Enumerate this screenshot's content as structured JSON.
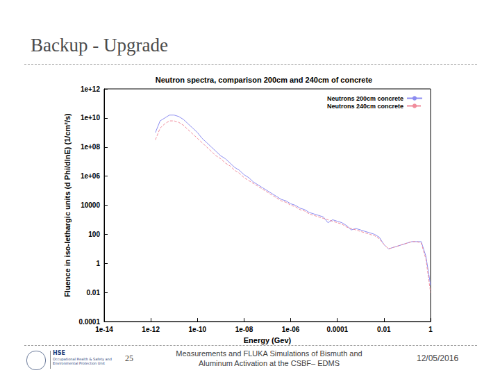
{
  "slide": {
    "title": "Backup - Upgrade",
    "page": "25",
    "footer": "Measurements and FLUKA Simulations of Bismuth and Aluminum Activation at the CSBF– EDMS",
    "date": "12/05/2016",
    "logo_text": "HSE",
    "logo_caption": "Occupational Health & Safety and Environmental Protection Unit"
  },
  "chart_data": {
    "type": "line",
    "title": "Neutron spectra, comparison 200cm and 240cm of concrete",
    "x_label": "Energy (Gev)",
    "y_label": "Fluence in iso-lethargic units (d Phi/dlnE) (1/cm²/s)",
    "log": true,
    "grid": false,
    "legend": "upper right",
    "xlim": [
      1e-14,
      1
    ],
    "ylim": [
      0.0001,
      1000000000000.0
    ],
    "xticks": [
      {
        "value": 1e-14,
        "label": "1e-14"
      },
      {
        "value": 1e-12,
        "label": "1e-12"
      },
      {
        "value": 1e-10,
        "label": "1e-10"
      },
      {
        "value": 1e-08,
        "label": "1e-08"
      },
      {
        "value": 1e-06,
        "label": "1e-06"
      },
      0.0001,
      0.01,
      1
    ],
    "yticks": [
      0.0001,
      0.01,
      1,
      100,
      10000,
      {
        "value": 1000000.0,
        "label": "1e+06"
      },
      {
        "value": 100000000.0,
        "label": "1e+08"
      },
      {
        "value": 10000000000.0,
        "label": "1e+10"
      },
      {
        "value": 1000000000000.0,
        "label": "1e+12"
      }
    ],
    "x": [
      1.58e-12,
      2.51e-12,
      3.98e-12,
      6.31e-12,
      1e-11,
      1.58e-11,
      2.51e-11,
      3.98e-11,
      6.31e-11,
      1e-10,
      1.58e-10,
      2.51e-10,
      3.98e-10,
      6.31e-10,
      1e-09,
      1.58e-09,
      2.51e-09,
      3.98e-09,
      6.31e-09,
      1e-08,
      1.58e-08,
      2.51e-08,
      3.98e-08,
      6.31e-08,
      1e-07,
      1.58e-07,
      2.51e-07,
      3.98e-07,
      6.31e-07,
      1e-06,
      1.58e-06,
      2.51e-06,
      3.98e-06,
      6.31e-06,
      1e-05,
      1.58e-05,
      2.51e-05,
      3.98e-05,
      6.31e-05,
      0.0001,
      0.000158,
      0.000251,
      0.000398,
      0.000631,
      0.001,
      0.00158,
      0.00251,
      0.00398,
      0.00631,
      0.01,
      0.0158,
      0.0251,
      0.0398,
      0.0631,
      0.1,
      0.158,
      0.251,
      0.398,
      0.631,
      1
    ],
    "series": [
      {
        "name": "Neutrons 200cm concrete",
        "color": "#8c8cf0",
        "line_style": "solid",
        "values": [
          1000000000.0,
          6310000000.0,
          10000000000.0,
          15800000000.0,
          15800000000.0,
          12600000000.0,
          7940000000.0,
          3980000000.0,
          2000000000.0,
          1000000000.0,
          398000000.0,
          200000000.0,
          100000000.0,
          50100000.0,
          25100000.0,
          15800000.0,
          7940000.0,
          3980000.0,
          2510000.0,
          1260000.0,
          794000.0,
          398000.0,
          251000.0,
          158000.0,
          100000.0,
          63100.0,
          39800.0,
          25100.0,
          20000.0,
          12600.0,
          10000.0,
          6310,
          5010,
          3160,
          2510,
          2000,
          1580,
          631,
          1000,
          794,
          631,
          398,
          200,
          251,
          200,
          158,
          126,
          100,
          63.1,
          20,
          10,
          12.6,
          15.8,
          20,
          25.1,
          31.6,
          31.6,
          31.6,
          3.16,
          0.0316
        ]
      },
      {
        "name": "Neutrons 240cm concrete",
        "color": "#f08c9c",
        "line_style": "dashed",
        "values": [
          316000000.0,
          2000000000.0,
          3980000000.0,
          6310000000.0,
          6310000000.0,
          5010000000.0,
          3160000000.0,
          1580000000.0,
          794000000.0,
          398000000.0,
          200000000.0,
          100000000.0,
          50100000.0,
          25100000.0,
          15800000.0,
          7940000.0,
          5010000.0,
          2510000.0,
          1580000.0,
          794000.0,
          501000.0,
          316000.0,
          200000.0,
          126000.0,
          79400.0,
          50100.0,
          31600.0,
          20000.0,
          15800.0,
          10000.0,
          7940,
          5010,
          3980,
          2510,
          2000,
          1580,
          1260,
          1000,
          794,
          631,
          501,
          316,
          251,
          200,
          158,
          126,
          100,
          79.4,
          50.1,
          20,
          10,
          12.6,
          15.8,
          20,
          25.1,
          31.6,
          31.6,
          25.1,
          2,
          0.01
        ]
      }
    ]
  }
}
